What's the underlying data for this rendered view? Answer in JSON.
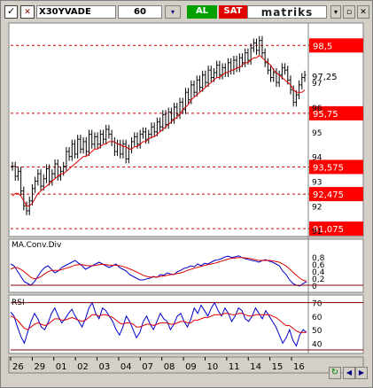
{
  "toolbar": {
    "check_glyph": "✓",
    "symbol_icon_glyph": "✕",
    "symbol": "X30YVADE",
    "period": "60",
    "settings_glyph": "▾",
    "buy_label": "AL",
    "sell_label": "SAT",
    "logo_text": "matriks",
    "minimize_glyph": "▾",
    "restore_glyph": "▫",
    "close_glyph": "✕"
  },
  "bottom": {
    "refresh_glyph": "↻",
    "prev_glyph": "◀",
    "next_glyph": "▶"
  },
  "colors": {
    "price": "#000000",
    "ma": "#e00000",
    "macd": "#0000cc",
    "signal": "#e00000",
    "level_box": "#ff0000",
    "level_line": "#cc0000"
  },
  "chart_data": [
    {
      "type": "candlestick",
      "name": "price",
      "ylim": [
        90.9,
        99.3
      ],
      "ytick_labels": [
        "97",
        "96",
        "95",
        "94",
        "93",
        "92",
        "91"
      ],
      "ytick_values": [
        97,
        96,
        95,
        94,
        93,
        92,
        91
      ],
      "current_value_label": "97,25",
      "current_value": 97.25,
      "levels": [
        {
          "label": "98,5",
          "value": 98.5
        },
        {
          "label": "95,75",
          "value": 95.75
        },
        {
          "label": "93,575",
          "value": 93.575
        },
        {
          "label": "92,475",
          "value": 92.475
        },
        {
          "label": "91,075",
          "value": 91.075
        }
      ],
      "series": [
        {
          "name": "price",
          "values": [
            93.6,
            93.2,
            93.4,
            92.6,
            92.0,
            91.8,
            92.2,
            92.7,
            93.0,
            93.3,
            92.8,
            93.1,
            93.5,
            93.0,
            93.3,
            93.7,
            93.2,
            93.4,
            93.6,
            94.2,
            94.0,
            94.5,
            94.1,
            94.7,
            94.3,
            94.6,
            94.2,
            94.9,
            94.5,
            94.8,
            94.5,
            94.9,
            94.7,
            95.1,
            94.9,
            94.6,
            94.2,
            94.5,
            94.1,
            94.5,
            93.9,
            94.3,
            94.6,
            94.8,
            94.5,
            94.9,
            95.0,
            94.7,
            94.9,
            95.2,
            95.0,
            95.4,
            95.2,
            95.7,
            95.3,
            95.8,
            95.5,
            96.0,
            95.7,
            96.2,
            95.9,
            96.6,
            96.3,
            96.9,
            96.6,
            97.1,
            96.8,
            97.3,
            97.0,
            97.5,
            97.2,
            97.4,
            97.7,
            97.3,
            97.6,
            97.4,
            97.8,
            97.5,
            97.9,
            97.6,
            98.0,
            97.8,
            98.2,
            97.9,
            98.4,
            98.6,
            98.3,
            98.7,
            98.2,
            97.8,
            97.5,
            97.2,
            97.4,
            97.0,
            97.3,
            97.6,
            97.5,
            97.1,
            96.7,
            96.2,
            96.5,
            96.9,
            97.2,
            97.3
          ]
        },
        {
          "name": "ma",
          "values": [
            92.4,
            92.5,
            92.5,
            92.4,
            92.2,
            92.0,
            92.0,
            92.1,
            92.3,
            92.5,
            92.6,
            92.7,
            92.8,
            92.9,
            93.0,
            93.1,
            93.2,
            93.3,
            93.3,
            93.4,
            93.5,
            93.6,
            93.7,
            93.8,
            93.9,
            94.0,
            94.0,
            94.1,
            94.2,
            94.3,
            94.3,
            94.4,
            94.5,
            94.5,
            94.6,
            94.6,
            94.6,
            94.5,
            94.5,
            94.4,
            94.4,
            94.3,
            94.3,
            94.4,
            94.4,
            94.5,
            94.6,
            94.6,
            94.7,
            94.8,
            94.8,
            94.9,
            95.0,
            95.1,
            95.2,
            95.3,
            95.4,
            95.5,
            95.6,
            95.7,
            95.9,
            96.0,
            96.1,
            96.3,
            96.4,
            96.5,
            96.6,
            96.7,
            96.8,
            96.9,
            97.0,
            97.1,
            97.2,
            97.2,
            97.3,
            97.4,
            97.4,
            97.5,
            97.5,
            97.6,
            97.6,
            97.7,
            97.8,
            97.8,
            97.9,
            98.0,
            98.0,
            98.1,
            98.0,
            97.9,
            97.8,
            97.7,
            97.5,
            97.4,
            97.3,
            97.2,
            97.1,
            97.0,
            96.9,
            96.7,
            96.6,
            96.6,
            96.6,
            96.7
          ]
        }
      ]
    },
    {
      "type": "line",
      "title": "MA.Conv.Div",
      "ylim": [
        -0.1,
        1.0
      ],
      "ytick_labels": [
        "0,8",
        "0,6",
        "0,4",
        "0,2",
        "0"
      ],
      "ytick_values": [
        0.8,
        0.6,
        0.4,
        0.2,
        0
      ],
      "series": [
        {
          "name": "macd",
          "values": [
            0.6,
            0.55,
            0.4,
            0.25,
            0.1,
            0.05,
            0.0,
            0.1,
            0.25,
            0.4,
            0.5,
            0.55,
            0.45,
            0.35,
            0.4,
            0.5,
            0.55,
            0.6,
            0.65,
            0.7,
            0.62,
            0.55,
            0.45,
            0.5,
            0.55,
            0.6,
            0.65,
            0.6,
            0.55,
            0.5,
            0.55,
            0.6,
            0.5,
            0.45,
            0.4,
            0.3,
            0.25,
            0.2,
            0.15,
            0.15,
            0.18,
            0.2,
            0.25,
            0.22,
            0.3,
            0.28,
            0.35,
            0.32,
            0.3,
            0.38,
            0.42,
            0.48,
            0.5,
            0.55,
            0.52,
            0.6,
            0.55,
            0.62,
            0.6,
            0.65,
            0.7,
            0.72,
            0.75,
            0.8,
            0.82,
            0.78,
            0.8,
            0.83,
            0.78,
            0.75,
            0.72,
            0.7,
            0.68,
            0.65,
            0.7,
            0.72,
            0.68,
            0.65,
            0.6,
            0.55,
            0.4,
            0.3,
            0.15,
            0.05,
            0.0,
            -0.02,
            0.05,
            0.1
          ]
        },
        {
          "name": "signal",
          "values": [
            0.45,
            0.5,
            0.5,
            0.45,
            0.38,
            0.3,
            0.22,
            0.18,
            0.2,
            0.25,
            0.32,
            0.38,
            0.42,
            0.42,
            0.42,
            0.44,
            0.47,
            0.5,
            0.53,
            0.57,
            0.58,
            0.58,
            0.56,
            0.55,
            0.55,
            0.56,
            0.58,
            0.59,
            0.58,
            0.57,
            0.56,
            0.57,
            0.55,
            0.53,
            0.5,
            0.46,
            0.42,
            0.38,
            0.33,
            0.28,
            0.25,
            0.23,
            0.23,
            0.23,
            0.25,
            0.26,
            0.28,
            0.3,
            0.31,
            0.33,
            0.35,
            0.38,
            0.42,
            0.45,
            0.48,
            0.51,
            0.53,
            0.56,
            0.58,
            0.6,
            0.62,
            0.65,
            0.68,
            0.71,
            0.74,
            0.76,
            0.77,
            0.78,
            0.78,
            0.77,
            0.76,
            0.74,
            0.72,
            0.7,
            0.7,
            0.7,
            0.7,
            0.69,
            0.67,
            0.65,
            0.6,
            0.54,
            0.46,
            0.37,
            0.28,
            0.2,
            0.14,
            0.12
          ]
        }
      ]
    },
    {
      "type": "line",
      "title": "RSI",
      "ylim": [
        35,
        73
      ],
      "ytick_labels": [
        "70",
        "60",
        "50",
        "40"
      ],
      "ytick_values": [
        70,
        60,
        50,
        40
      ],
      "levels": [
        70,
        35
      ],
      "series": [
        {
          "name": "rsi",
          "values": [
            63,
            60,
            52,
            45,
            40,
            48,
            56,
            62,
            58,
            52,
            50,
            55,
            62,
            66,
            60,
            55,
            58,
            62,
            65,
            60,
            56,
            52,
            58,
            66,
            70,
            62,
            58,
            66,
            64,
            60,
            56,
            50,
            46,
            52,
            60,
            56,
            50,
            44,
            48,
            56,
            60,
            54,
            50,
            56,
            62,
            58,
            56,
            50,
            54,
            60,
            62,
            56,
            52,
            58,
            66,
            62,
            68,
            64,
            60,
            66,
            70,
            64,
            60,
            66,
            62,
            56,
            60,
            66,
            64,
            58,
            56,
            60,
            66,
            62,
            58,
            64,
            60,
            56,
            52,
            46,
            40,
            44,
            50,
            42,
            38,
            46,
            50,
            48
          ]
        },
        {
          "name": "rsi-average",
          "values": [
            60,
            59,
            57,
            54,
            51,
            50,
            52,
            54,
            55,
            54,
            53,
            54,
            56,
            58,
            58,
            57,
            57,
            58,
            59,
            58,
            57,
            56,
            57,
            59,
            61,
            61,
            60,
            61,
            61,
            60,
            59,
            57,
            55,
            54,
            55,
            55,
            54,
            52,
            52,
            53,
            54,
            54,
            53,
            54,
            55,
            55,
            55,
            54,
            54,
            55,
            56,
            56,
            55,
            55,
            57,
            57,
            58,
            59,
            59,
            60,
            61,
            61,
            61,
            62,
            62,
            61,
            61,
            62,
            62,
            61,
            60,
            60,
            61,
            61,
            61,
            61,
            61,
            60,
            59,
            57,
            55,
            53,
            53,
            51,
            49,
            48,
            48,
            48
          ]
        }
      ]
    },
    {
      "type": "axis",
      "name": "time-axis",
      "xtick_labels": [
        "26",
        "29",
        "01",
        "02",
        "03",
        "04",
        "07",
        "08",
        "09",
        "10",
        "11",
        "14",
        "15",
        "16"
      ]
    }
  ]
}
